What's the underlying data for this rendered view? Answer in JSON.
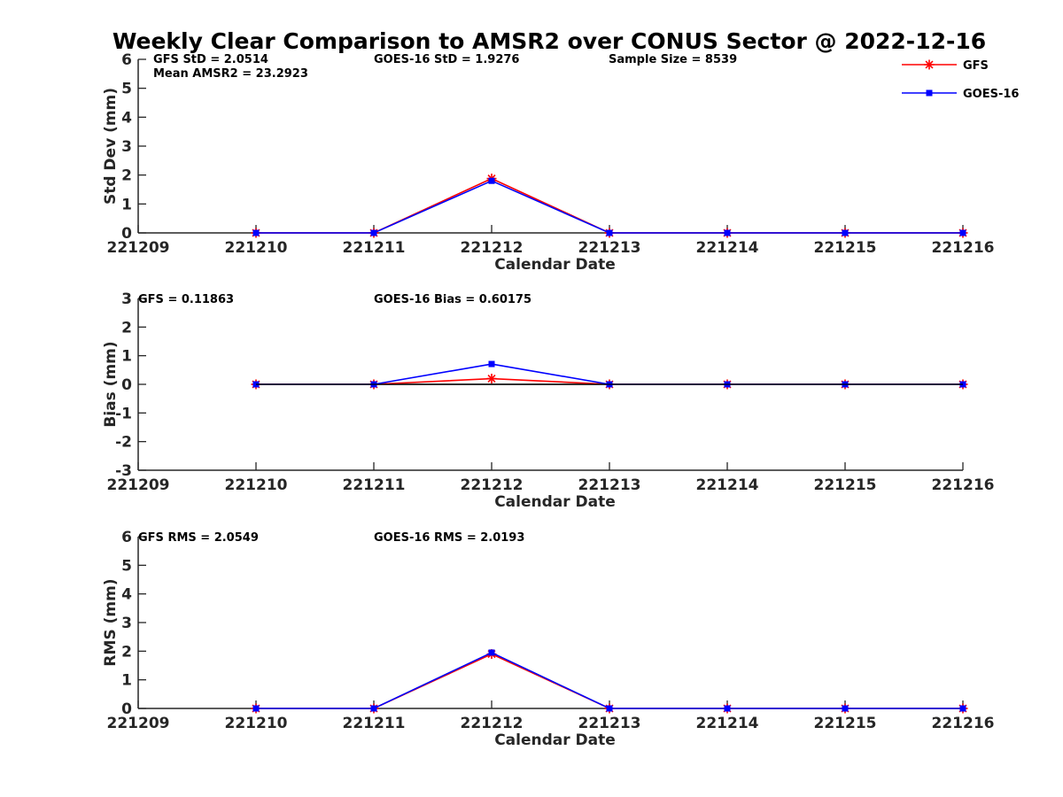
{
  "figure": {
    "title": "Weekly Clear Comparison to AMSR2 over CONUS Sector @ 2022-12-16"
  },
  "legend": {
    "entries": [
      {
        "label": "GFS",
        "color": "#ff0000",
        "marker": "asterisk"
      },
      {
        "label": "GOES-16",
        "color": "#0000ff",
        "marker": "square"
      }
    ]
  },
  "chart_data": [
    {
      "type": "line",
      "title": "",
      "xlabel": "Calendar Date",
      "ylabel": "Std Dev (mm)",
      "x": [
        "221209",
        "221210",
        "221211",
        "221212",
        "221213",
        "221214",
        "221215",
        "221216"
      ],
      "xlim": [
        "221209",
        "221216"
      ],
      "ylim": [
        0,
        6
      ],
      "yticks": [
        "0",
        "1",
        "2",
        "3",
        "4",
        "5",
        "6"
      ],
      "grid": false,
      "zero_line": false,
      "annotations": [
        "GFS StD = 2.0514",
        "Mean AMSR2 = 23.2923",
        "GOES-16 StD = 1.9276",
        "Sample Size = 8539"
      ],
      "series": [
        {
          "name": "GFS",
          "color": "#ff0000",
          "marker": "asterisk",
          "x": [
            "221210",
            "221211",
            "221212",
            "221213",
            "221214",
            "221215",
            "221216"
          ],
          "values": [
            0,
            0,
            1.88,
            0,
            0,
            0,
            0
          ]
        },
        {
          "name": "GOES-16",
          "color": "#0000ff",
          "marker": "square",
          "x": [
            "221210",
            "221211",
            "221212",
            "221213",
            "221214",
            "221215",
            "221216"
          ],
          "values": [
            0,
            0,
            1.8,
            0,
            0,
            0,
            0
          ]
        }
      ]
    },
    {
      "type": "line",
      "title": "",
      "xlabel": "Calendar Date",
      "ylabel": "Bias (mm)",
      "x": [
        "221209",
        "221210",
        "221211",
        "221212",
        "221213",
        "221214",
        "221215",
        "221216"
      ],
      "xlim": [
        "221209",
        "221216"
      ],
      "ylim": [
        -3,
        3
      ],
      "yticks": [
        "-3",
        "-2",
        "-1",
        "0",
        "1",
        "2",
        "3"
      ],
      "grid": false,
      "zero_line": true,
      "annotations": [
        "GFS = 0.11863",
        "GOES-16 Bias  = 0.60175"
      ],
      "series": [
        {
          "name": "GFS",
          "color": "#ff0000",
          "marker": "asterisk",
          "x": [
            "221210",
            "221211",
            "221212",
            "221213",
            "221214",
            "221215",
            "221216"
          ],
          "values": [
            0,
            0,
            0.2,
            0,
            0,
            0,
            0
          ]
        },
        {
          "name": "GOES-16",
          "color": "#0000ff",
          "marker": "square",
          "x": [
            "221210",
            "221211",
            "221212",
            "221213",
            "221214",
            "221215",
            "221216"
          ],
          "values": [
            0,
            0,
            0.71,
            0,
            0,
            0,
            0
          ]
        }
      ]
    },
    {
      "type": "line",
      "title": "",
      "xlabel": "Calendar Date",
      "ylabel": "RMS (mm)",
      "x": [
        "221209",
        "221210",
        "221211",
        "221212",
        "221213",
        "221214",
        "221215",
        "221216"
      ],
      "xlim": [
        "221209",
        "221216"
      ],
      "ylim": [
        0,
        6
      ],
      "yticks": [
        "0",
        "1",
        "2",
        "3",
        "4",
        "5",
        "6"
      ],
      "grid": false,
      "zero_line": false,
      "annotations": [
        "GFS RMS = 2.0549",
        "GOES-16 RMS = 2.0193"
      ],
      "series": [
        {
          "name": "GFS",
          "color": "#ff0000",
          "marker": "asterisk",
          "x": [
            "221210",
            "221211",
            "221212",
            "221213",
            "221214",
            "221215",
            "221216"
          ],
          "values": [
            0,
            0,
            1.9,
            0,
            0,
            0,
            0
          ]
        },
        {
          "name": "GOES-16",
          "color": "#0000ff",
          "marker": "square",
          "x": [
            "221210",
            "221211",
            "221212",
            "221213",
            "221214",
            "221215",
            "221216"
          ],
          "values": [
            0,
            0,
            1.95,
            0,
            0,
            0,
            0
          ]
        }
      ]
    }
  ]
}
